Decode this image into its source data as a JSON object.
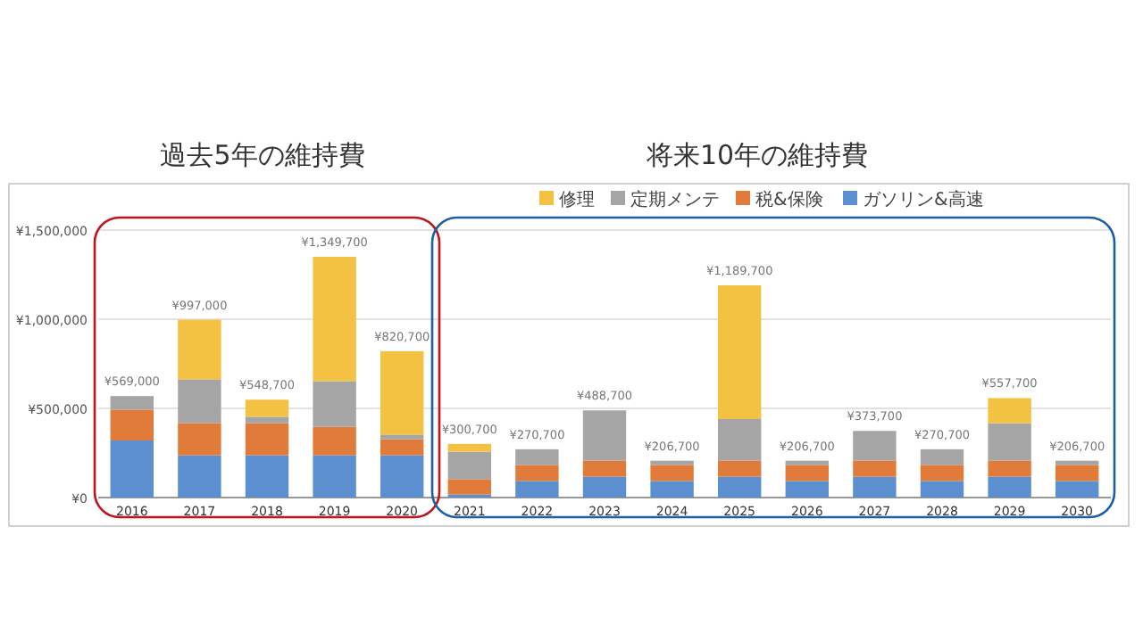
{
  "chart_data": {
    "type": "bar",
    "stacked": true,
    "categories": [
      "2016",
      "2017",
      "2018",
      "2019",
      "2020",
      "2021",
      "2022",
      "2023",
      "2024",
      "2025",
      "2026",
      "2027",
      "2028",
      "2029",
      "2030"
    ],
    "series": [
      {
        "name": "ガソリン&高速",
        "color": "#5b8fd0",
        "values": [
          320000,
          237000,
          237000,
          237000,
          237000,
          17000,
          93000,
          117000,
          93000,
          117000,
          93000,
          117000,
          93000,
          117000,
          93000
        ]
      },
      {
        "name": "税&保険",
        "color": "#e07b39",
        "values": [
          173000,
          180000,
          180000,
          160000,
          90000,
          86000,
          90000,
          90000,
          90000,
          90000,
          90000,
          90000,
          90000,
          90000,
          90000
        ]
      },
      {
        "name": "定期メンテ",
        "color": "#a5a5a5",
        "values": [
          76000,
          246000,
          36000,
          256000,
          26000,
          154000,
          87700,
          281700,
          23700,
          233000,
          23700,
          166700,
          87700,
          210000,
          23700
        ]
      },
      {
        "name": "修理",
        "color": "#f4c242",
        "values": [
          0,
          334000,
          95700,
          696700,
          467700,
          43700,
          0,
          0,
          0,
          749700,
          0,
          0,
          0,
          140700,
          0
        ]
      }
    ],
    "totals": [
      "¥569,000",
      "¥997,000",
      "¥548,700",
      "¥1,349,700",
      "¥820,700",
      "¥300,700",
      "¥270,700",
      "¥488,700",
      "¥206,700",
      "¥1,189,700",
      "¥206,700",
      "¥373,700",
      "¥270,700",
      "¥557,700",
      "¥206,700"
    ],
    "ylim": [
      0,
      1500000
    ],
    "yticks": [
      {
        "value": 0,
        "label": "¥0"
      },
      {
        "value": 500000,
        "label": "¥500,000"
      },
      {
        "value": 1000000,
        "label": "¥1,000,000"
      },
      {
        "value": 1500000,
        "label": "¥1,500,000"
      }
    ],
    "grid": "y",
    "legend": "top right",
    "annotations": [
      "過去5年の維持費",
      "将来10年の維持費"
    ]
  }
}
